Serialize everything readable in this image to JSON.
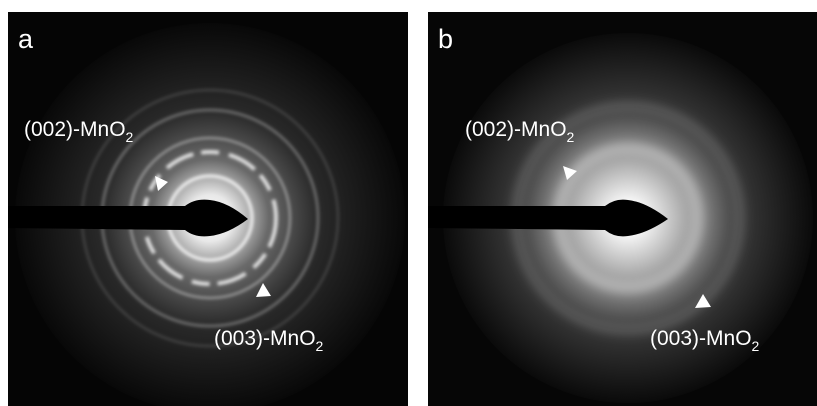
{
  "panels": [
    {
      "label": "a",
      "annotations": [
        {
          "text": "(002)-MnO",
          "subscript": "2"
        },
        {
          "text": "(003)-MnO",
          "subscript": "2"
        }
      ]
    },
    {
      "label": "b",
      "annotations": [
        {
          "text": "(002)-MnO",
          "subscript": "2"
        },
        {
          "text": "(003)-MnO",
          "subscript": "2"
        }
      ]
    }
  ]
}
